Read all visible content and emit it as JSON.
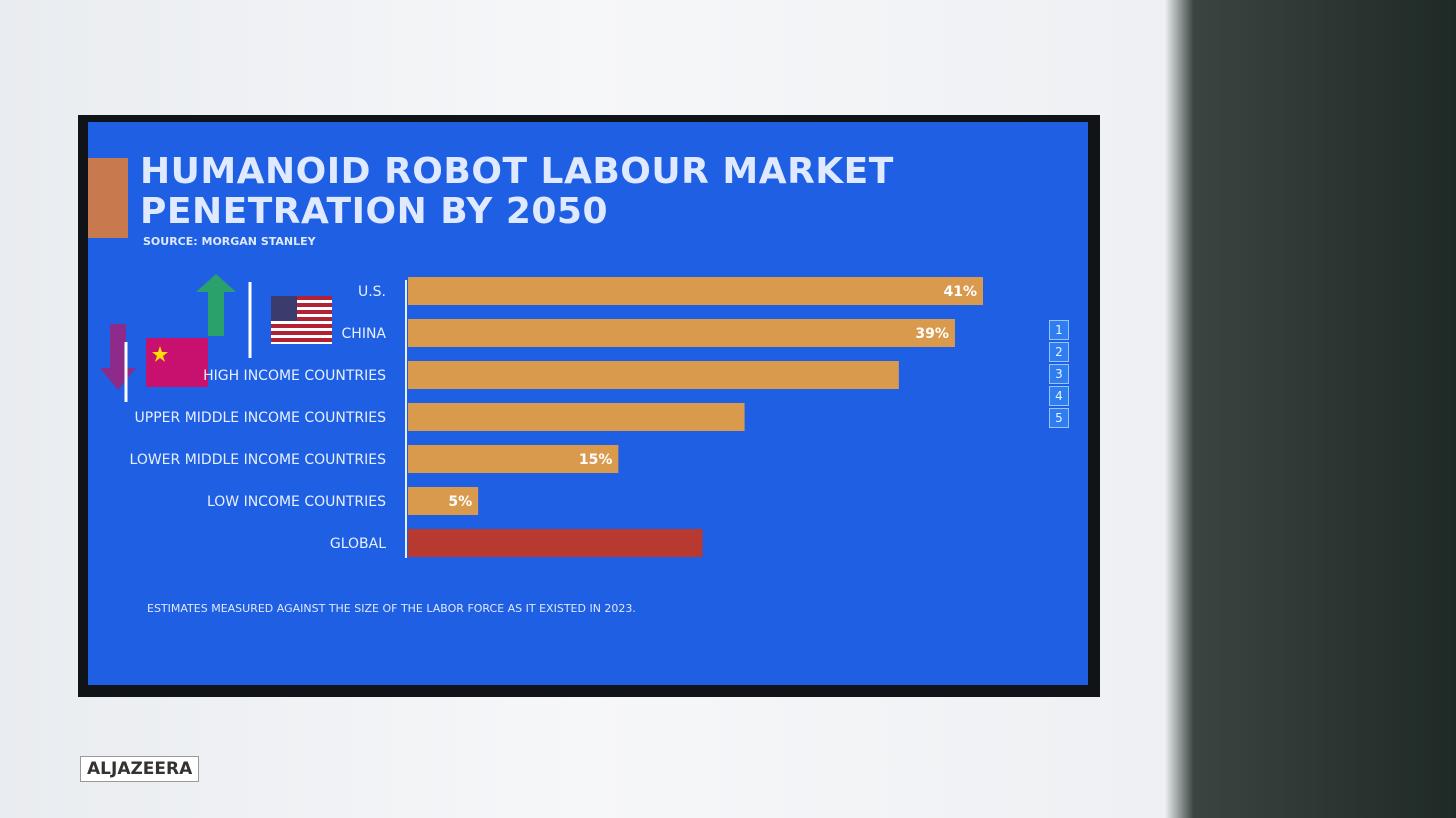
{
  "chart_data": {
    "type": "bar",
    "orientation": "horizontal",
    "title": "HUMANOID ROBOT LABOUR MARKET PENETRATION BY 2050",
    "source": "SOURCE: MORGAN STANLEY",
    "note": "ESTIMATES MEASURED AGAINST THE SIZE OF THE LABOR FORCE AS IT EXISTED IN 2023.",
    "categories": [
      "U.S.",
      "CHINA",
      "HIGH INCOME COUNTRIES",
      "UPPER MIDDLE INCOME COUNTRIES",
      "LOWER MIDDLE INCOME COUNTRIES",
      "LOW INCOME COUNTRIES",
      "GLOBAL"
    ],
    "values": [
      41,
      39,
      35,
      24,
      15,
      5,
      21
    ],
    "value_labels": [
      "41%",
      "39%",
      null,
      null,
      "15%",
      "5%",
      null
    ],
    "colors": [
      "#d99a4e",
      "#d99a4e",
      "#d99a4e",
      "#d99a4e",
      "#d99a4e",
      "#d99a4e",
      "#b8392f"
    ]
  },
  "logo": "ALJAZEERA",
  "toolbar": [
    "1",
    "2",
    "3",
    "4",
    "5"
  ]
}
